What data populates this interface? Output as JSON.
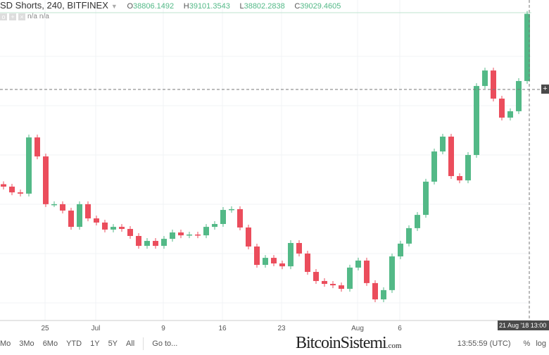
{
  "header": {
    "symbol": "SD Shorts, 240, BITFINEX",
    "o_label": "O",
    "o": "38806.1492",
    "h_label": "H",
    "h": "39101.3543",
    "l_label": "L",
    "l": "38802.2838",
    "c_label": "C",
    "c": "39029.4605",
    "ind1": "n/a",
    "ind2": "n/a"
  },
  "bottom": {
    "ranges": [
      "Mo",
      "3Mo",
      "6Mo",
      "YTD",
      "1Y",
      "5Y",
      "All"
    ],
    "goto": "Go to...",
    "time": "13:55:59 (UTC)",
    "percent": "%",
    "log": "log",
    "date_label": "21 Aug '18 13:00"
  },
  "watermark": {
    "text": "BitcoinSistemi",
    "sub": ".com"
  },
  "colors": {
    "up": "#53b987",
    "down": "#eb4d5c",
    "grid": "#f0f3f6"
  },
  "chart_data": {
    "type": "candlestick",
    "title": "",
    "xlabel": "",
    "ylabel": "",
    "grid": true,
    "x": [
      "2018-06-20",
      "2018-06-21",
      "2018-06-22",
      "2018-06-23",
      "2018-06-24",
      "2018-06-25",
      "2018-06-26",
      "2018-06-27",
      "2018-06-28",
      "2018-06-29",
      "2018-06-30",
      "2018-07-01",
      "2018-07-02",
      "2018-07-03",
      "2018-07-04",
      "2018-07-05",
      "2018-07-06",
      "2018-07-07",
      "2018-07-08",
      "2018-07-09",
      "2018-07-10",
      "2018-07-11",
      "2018-07-12",
      "2018-07-13",
      "2018-07-14",
      "2018-07-15",
      "2018-07-16",
      "2018-07-17",
      "2018-07-18",
      "2018-07-19",
      "2018-07-20",
      "2018-07-21",
      "2018-07-22",
      "2018-07-23",
      "2018-07-24",
      "2018-07-25",
      "2018-07-26",
      "2018-07-27",
      "2018-07-28",
      "2018-07-29",
      "2018-07-30",
      "2018-07-31",
      "2018-08-01",
      "2018-08-02",
      "2018-08-03",
      "2018-08-04",
      "2018-08-05",
      "2018-08-06",
      "2018-08-07",
      "2018-08-08",
      "2018-08-09",
      "2018-08-10",
      "2018-08-11",
      "2018-08-12",
      "2018-08-13",
      "2018-08-14",
      "2018-08-15",
      "2018-08-16",
      "2018-08-17",
      "2018-08-18",
      "2018-08-19",
      "2018-08-20",
      "2018-08-21"
    ],
    "close": [
      28210,
      27850,
      27770,
      31290,
      30100,
      27110,
      27110,
      26710,
      25690,
      27110,
      26220,
      25960,
      25520,
      25690,
      25560,
      25120,
      24500,
      24810,
      24500,
      24940,
      25340,
      25160,
      25210,
      25160,
      25690,
      25870,
      26750,
      26800,
      25650,
      24460,
      23310,
      23750,
      23400,
      23220,
      24680,
      24020,
      22870,
      22300,
      22120,
      22030,
      21810,
      23140,
      23580,
      22170,
      21150,
      21730,
      23840,
      24640,
      25610,
      26440,
      28520,
      30410,
      31340,
      28870,
      28600,
      30190,
      34510,
      35480,
      33720,
      32530,
      32930,
      34820,
      39029.46
    ],
    "x_ticks": [
      {
        "label": "25",
        "date": "2018-06-25"
      },
      {
        "label": "Jul",
        "date": "2018-07-01"
      },
      {
        "label": "9",
        "date": "2018-07-09"
      },
      {
        "label": "16",
        "date": "2018-07-16"
      },
      {
        "label": "23",
        "date": "2018-07-23"
      },
      {
        "label": "Aug",
        "date": "2018-08-01"
      },
      {
        "label": "6",
        "date": "2018-08-06"
      }
    ]
  }
}
